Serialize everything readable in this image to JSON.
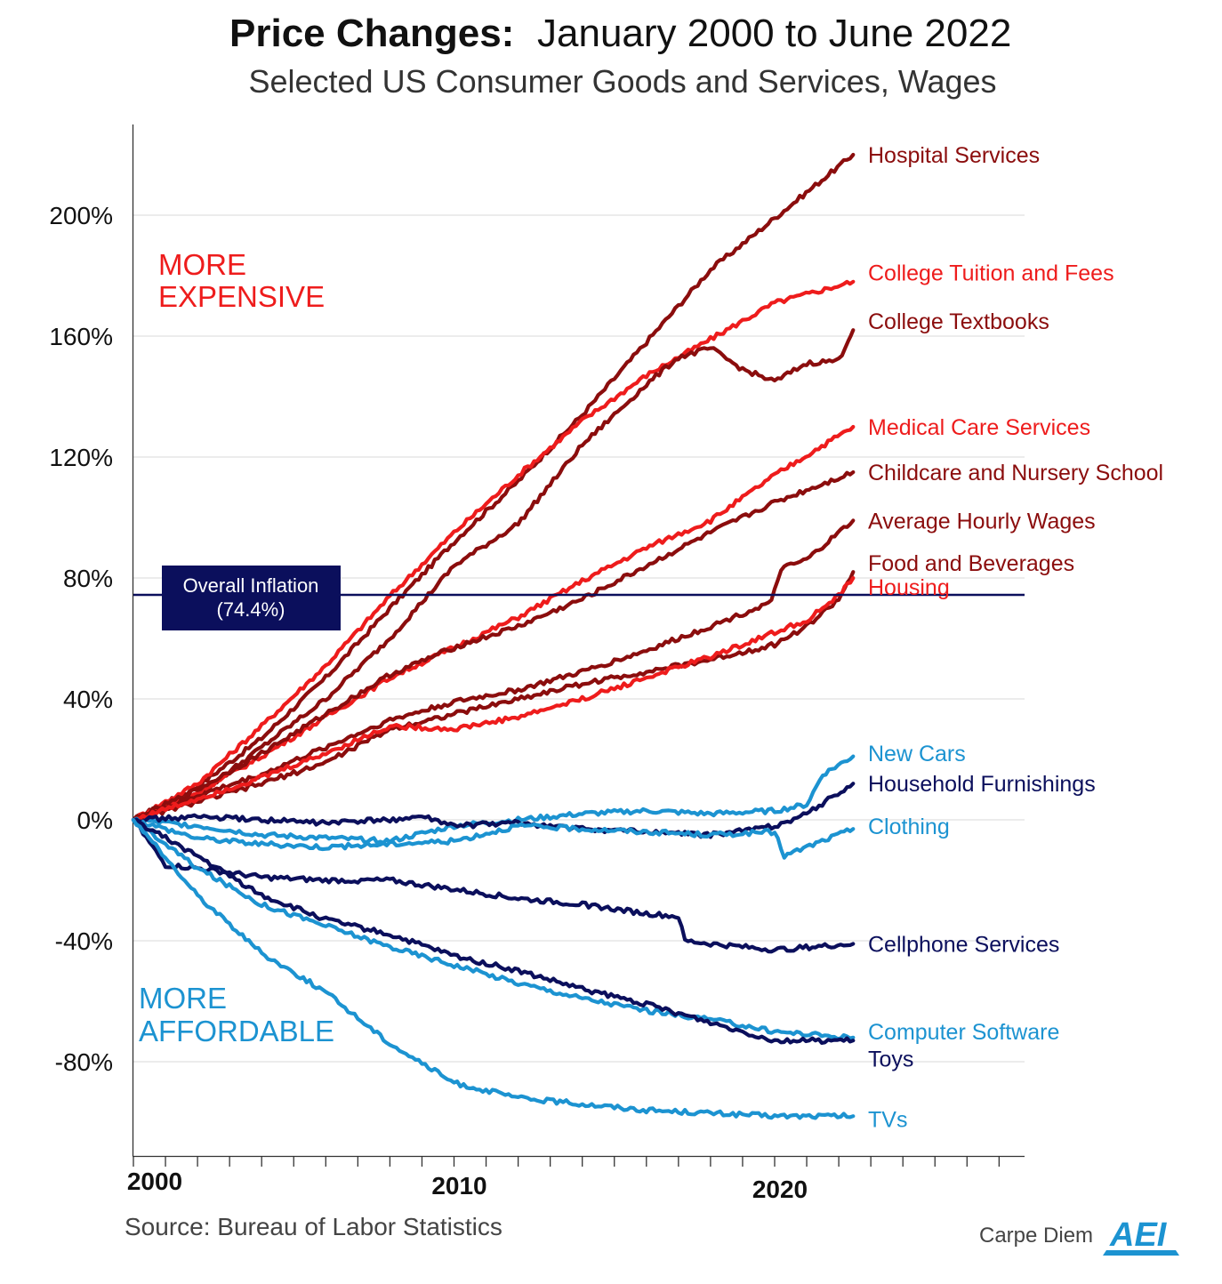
{
  "chart_data": {
    "type": "line",
    "title_bold": "Price Changes:",
    "title_rest": "January 2000 to June 2022",
    "subtitle": "Selected US Consumer Goods and Services, Wages",
    "source": "Source: Bureau of Labor Statistics",
    "brand": "Carpe Diem",
    "logo_text": "AEI",
    "xlim": [
      2000,
      2027.8
    ],
    "ylim": [
      -112,
      230
    ],
    "yticks": [
      200,
      160,
      120,
      80,
      40,
      0,
      -40,
      -80
    ],
    "ytick_labels": [
      "200%",
      "160%",
      "120%",
      "80%",
      "40%",
      "0%",
      "-40%",
      "-80%"
    ],
    "xtick_labels": [
      {
        "x": 2000,
        "label": "2000"
      },
      {
        "x": 2010,
        "label": "2010"
      },
      {
        "x": 2020,
        "label": "2020"
      }
    ],
    "region_labels": {
      "expensive": [
        "MORE",
        "EXPENSIVE"
      ],
      "affordable": [
        "MORE",
        "AFFORDABLE"
      ]
    },
    "inflation": {
      "value": 74.4,
      "label_line1": "Overall Inflation",
      "label_line2": "(74.4%)",
      "color": "#0b0f5c"
    },
    "series": [
      {
        "name": "Hospital Services",
        "color": "#8b0d0d",
        "label_y": 220,
        "x": [
          2000,
          2002,
          2004,
          2006,
          2008,
          2010,
          2012,
          2014,
          2016,
          2018,
          2020,
          2022.45
        ],
        "y": [
          0,
          11,
          27,
          47,
          70,
          92,
          112,
          134,
          158,
          182,
          199,
          220
        ]
      },
      {
        "name": "College Tuition and Fees",
        "color": "#ee1c1c",
        "label_y": 181,
        "x": [
          2000,
          2002,
          2004,
          2006,
          2008,
          2010,
          2012,
          2014,
          2016,
          2018,
          2020,
          2022.45
        ],
        "y": [
          0,
          12,
          31,
          51,
          74,
          95,
          114,
          132,
          147,
          159,
          171,
          178
        ]
      },
      {
        "name": "College Textbooks",
        "color": "#8b0d0d",
        "label_y": 165,
        "x": [
          2000,
          2002,
          2004,
          2006,
          2008,
          2010,
          2012,
          2014,
          2016,
          2017,
          2018,
          2019,
          2020,
          2021,
          2022,
          2022.3,
          2022.45
        ],
        "y": [
          0,
          8,
          24,
          40,
          60,
          84,
          98,
          124,
          144,
          153,
          156,
          149,
          145,
          151,
          152,
          159,
          162
        ]
      },
      {
        "name": "Medical Care Services",
        "color": "#ee1c1c",
        "label_y": 130,
        "x": [
          2000,
          2002,
          2004,
          2006,
          2008,
          2010,
          2012,
          2014,
          2016,
          2018,
          2020,
          2022.45
        ],
        "y": [
          0,
          9,
          21,
          34,
          47,
          57,
          67,
          79,
          90,
          99,
          114,
          130
        ]
      },
      {
        "name": "Childcare and Nursery School",
        "color": "#8b0d0d",
        "label_y": 115,
        "x": [
          2000,
          2002,
          2004,
          2006,
          2008,
          2010,
          2012,
          2014,
          2016,
          2018,
          2020,
          2022.45
        ],
        "y": [
          0,
          10,
          22,
          35,
          48,
          57,
          64,
          73,
          84,
          95,
          105,
          115
        ]
      },
      {
        "name": "Average Hourly Wages",
        "color": "#8b0d0d",
        "label_y": 99,
        "x": [
          2000,
          2002,
          2004,
          2006,
          2008,
          2010,
          2012,
          2014,
          2016,
          2018,
          2019.9,
          2020.2,
          2021,
          2022.45
        ],
        "y": [
          0,
          8,
          15,
          24,
          33,
          39,
          43,
          49,
          56,
          64,
          72,
          83,
          86,
          99
        ]
      },
      {
        "name": "Food and Beverages",
        "color": "#8b0d0d",
        "label_y": 85,
        "x": [
          2000,
          2002,
          2004,
          2006,
          2008,
          2010,
          2012,
          2014,
          2016,
          2018,
          2020,
          2021,
          2022,
          2022.45
        ],
        "y": [
          0,
          6,
          12,
          19,
          30,
          35,
          40,
          45,
          49,
          53,
          58,
          64,
          73,
          82
        ]
      },
      {
        "name": "Housing",
        "color": "#ee1c1c",
        "label_y": 77,
        "x": [
          2000,
          2002,
          2004,
          2006,
          2008,
          2010,
          2012,
          2014,
          2016,
          2018,
          2020,
          2021,
          2022,
          2022.45
        ],
        "y": [
          0,
          7,
          14,
          22,
          31,
          30,
          34,
          40,
          47,
          54,
          62,
          66,
          74,
          80
        ]
      },
      {
        "name": "New Cars",
        "color": "#1c93d1",
        "label_y": 22,
        "x": [
          2000,
          2002,
          2004,
          2006,
          2008,
          2010,
          2012,
          2014,
          2016,
          2018,
          2020,
          2021,
          2021.5,
          2022.45
        ],
        "y": [
          0,
          -2,
          -5,
          -6,
          -7,
          -2,
          0,
          2,
          3,
          2,
          3,
          5,
          15,
          21
        ]
      },
      {
        "name": "Household Furnishings",
        "color": "#0b0f5c",
        "label_y": 12,
        "x": [
          2000,
          2002,
          2004,
          2006,
          2008,
          2009,
          2010,
          2012,
          2014,
          2016,
          2018,
          2020,
          2021,
          2022.45
        ],
        "y": [
          0,
          1,
          0,
          -1,
          0,
          1,
          -2,
          -1,
          -3,
          -4,
          -5,
          -2,
          2,
          12
        ]
      },
      {
        "name": "Clothing",
        "color": "#1c93d1",
        "label_y": -2,
        "x": [
          2000,
          2002,
          2004,
          2006,
          2008,
          2010,
          2012,
          2014,
          2016,
          2018,
          2020,
          2020.3,
          2021,
          2022.45
        ],
        "y": [
          0,
          -6,
          -8,
          -9,
          -8,
          -7,
          -2,
          -3,
          -4,
          -5,
          -4,
          -12,
          -9,
          -3
        ]
      },
      {
        "name": "Cellphone Services",
        "color": "#0b0f5c",
        "label_y": -41,
        "x": [
          2000,
          2001,
          2002,
          2004,
          2006,
          2008,
          2010,
          2012,
          2014,
          2016,
          2017,
          2017.2,
          2018,
          2020,
          2022.45
        ],
        "y": [
          0,
          -15,
          -16,
          -19,
          -20,
          -20,
          -23,
          -26,
          -28,
          -31,
          -32,
          -40,
          -41,
          -43,
          -41
        ]
      },
      {
        "name": "Computer Software",
        "color": "#1c93d1",
        "label_y": -70,
        "x": [
          2000,
          2002,
          2004,
          2006,
          2008,
          2010,
          2012,
          2014,
          2016,
          2018,
          2020,
          2022.45
        ],
        "y": [
          0,
          -16,
          -28,
          -35,
          -42,
          -48,
          -54,
          -59,
          -63,
          -66,
          -70,
          -72
        ]
      },
      {
        "name": "Toys",
        "color": "#0b0f5c",
        "label_y": -79,
        "x": [
          2000,
          2002,
          2004,
          2006,
          2008,
          2010,
          2012,
          2014,
          2016,
          2018,
          2020,
          2022.45
        ],
        "y": [
          0,
          -12,
          -25,
          -33,
          -38,
          -45,
          -50,
          -56,
          -61,
          -67,
          -73,
          -73
        ]
      },
      {
        "name": "TVs",
        "color": "#1c93d1",
        "label_y": -99,
        "x": [
          2000,
          2002,
          2004,
          2006,
          2008,
          2010,
          2012,
          2014,
          2016,
          2018,
          2020,
          2022.45
        ],
        "y": [
          0,
          -25,
          -44,
          -57,
          -74,
          -87,
          -92,
          -94,
          -96,
          -97,
          -98,
          -98
        ]
      }
    ]
  }
}
